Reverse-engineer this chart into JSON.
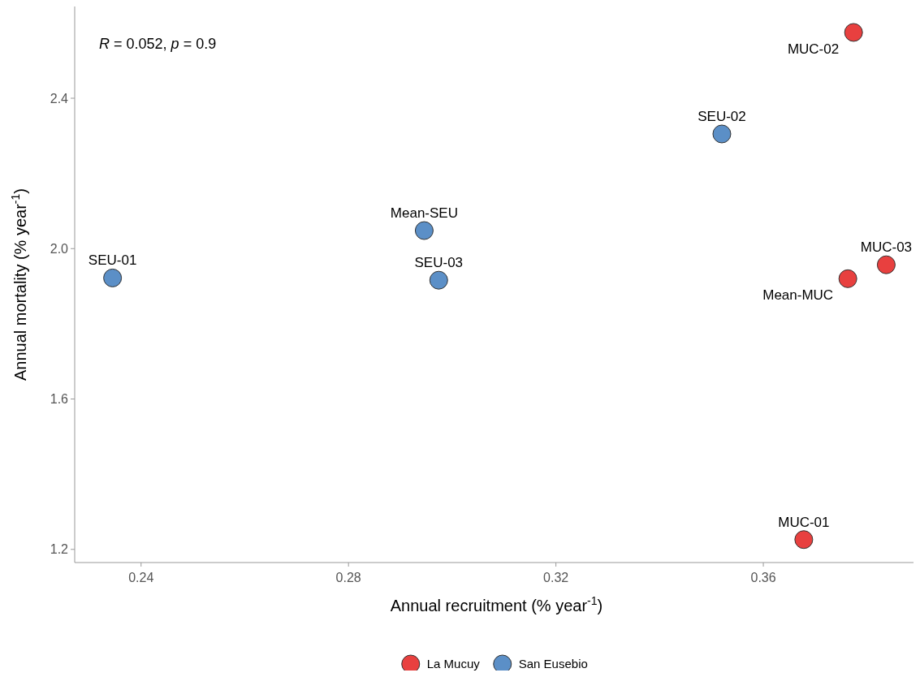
{
  "chart_data": {
    "type": "scatter",
    "xlabel": "Annual recruitment (%  year$^{-1}$)",
    "ylabel": "Annual mortality (%  year$^{-1}$)",
    "xlim": [
      0.2272,
      0.3899
    ],
    "xticks": [
      0.24,
      0.28,
      0.32,
      0.36
    ],
    "ylim": [
      1.165,
      2.644
    ],
    "yticks": [
      {
        "value": 1.2,
        "label": "1.2"
      },
      {
        "value": 1.6,
        "label": "1.6"
      },
      {
        "value": 2.0,
        "label": "2.0"
      },
      {
        "value": 2.4,
        "label": "2.4"
      }
    ],
    "series": [
      {
        "name": "La Mucuy",
        "color": "#e8403f",
        "x": [
          0.3678,
          0.3774,
          0.3837,
          0.3763
        ],
        "values": [
          1.226,
          2.575,
          1.957,
          1.92
        ]
      },
      {
        "name": "San Eusebio",
        "color": "#5b8fc7",
        "x": [
          0.2345,
          0.352,
          0.2974,
          0.2946
        ],
        "values": [
          1.922,
          2.305,
          1.916,
          2.048
        ]
      }
    ],
    "annotations": [
      "R = 0.052, p = 0.9",
      {
        "text": "MUC-01",
        "x": 0.3678,
        "y": 1.226
      },
      {
        "text": "MUC-02",
        "x": 0.3774,
        "y": 2.575
      },
      {
        "text": "MUC-03",
        "x": 0.3837,
        "y": 1.957
      },
      {
        "text": "Mean-MUC",
        "x": 0.3763,
        "y": 1.92
      },
      {
        "text": "SEU-01",
        "x": 0.2345,
        "y": 1.922
      },
      {
        "text": "SEU-02",
        "x": 0.352,
        "y": 2.305
      },
      {
        "text": "SEU-03",
        "x": 0.2974,
        "y": 1.916
      },
      {
        "text": "Mean-SEU",
        "x": 0.2946,
        "y": 2.048
      }
    ],
    "marker": "circle",
    "grid": false,
    "legend": "bottom"
  }
}
